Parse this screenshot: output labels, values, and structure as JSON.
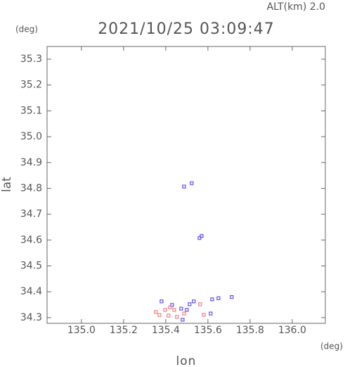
{
  "chart_data": {
    "type": "scatter",
    "title": "2021/10/25 03:09:47",
    "subtitle": "ALT(km) 2.0",
    "y_unit": "(deg)",
    "x_unit": "(deg)",
    "x_label": "lon",
    "y_label": "lat",
    "xlim": [
      134.837,
      136.157
    ],
    "ylim": [
      34.278,
      35.349
    ],
    "xticks": [
      {
        "value": 135.0,
        "label": "135.0"
      },
      135.2,
      135.4,
      135.6,
      135.8,
      {
        "value": 136.0,
        "label": "136.0"
      }
    ],
    "yticks": [
      {
        "value": 34.3,
        "label": "34.3"
      },
      34.4,
      34.5,
      34.6,
      34.7,
      34.8,
      34.9,
      {
        "value": 35.0,
        "label": "35.0"
      },
      35.1,
      35.2,
      35.3
    ],
    "series": [
      {
        "color": "#6a5cf0",
        "x": [
          135.487,
          135.523,
          135.57,
          135.56,
          135.38,
          135.43,
          135.473,
          135.5,
          135.513,
          135.613,
          135.62,
          135.533,
          135.48,
          135.713,
          135.65
        ],
        "values": [
          34.807,
          34.82,
          34.616,
          34.608,
          34.363,
          34.349,
          34.335,
          34.33,
          34.352,
          34.316,
          34.371,
          34.363,
          34.292,
          34.38,
          34.375
        ]
      },
      {
        "color": "#f08a8a",
        "x": [
          135.353,
          135.397,
          135.413,
          135.44,
          135.453,
          135.487,
          135.563,
          135.58,
          135.42,
          135.37
        ],
        "values": [
          34.322,
          34.33,
          34.308,
          34.33,
          34.303,
          34.316,
          34.352,
          34.311,
          34.34,
          34.31
        ]
      }
    ]
  }
}
